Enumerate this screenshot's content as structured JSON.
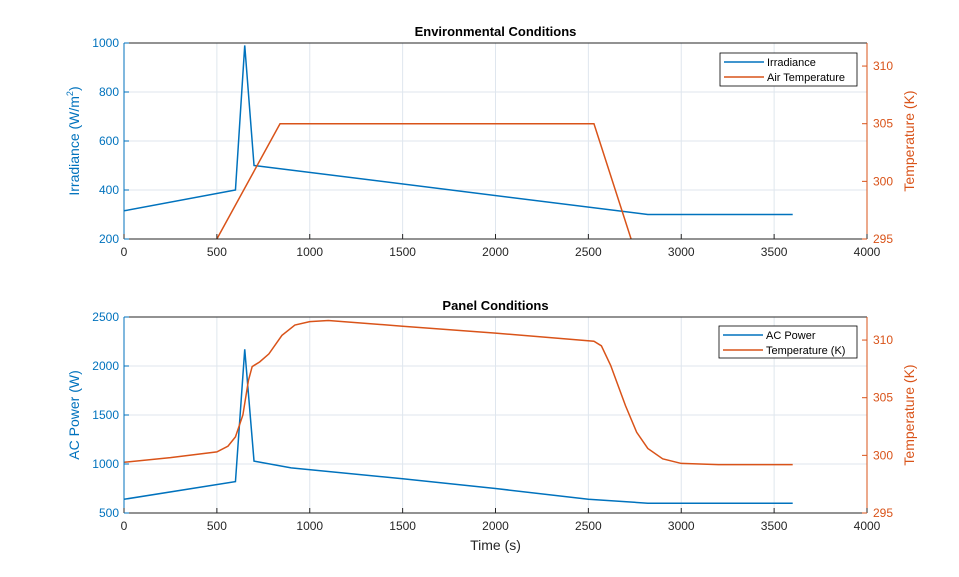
{
  "colors": {
    "blue": "#0072BD",
    "orange": "#D95319",
    "grid": "#dfe6ee",
    "axis": "#262626"
  },
  "chart_data": [
    {
      "type": "line",
      "title": "Environmental Conditions",
      "xlabel": "",
      "ylabel_left": "Irradiance (W/m",
      "ylabel_left_sup": "2",
      "ylabel_left_end": ")",
      "ylabel_right": "Temperature (K)",
      "xlim": [
        0,
        4000
      ],
      "ylim_left": [
        200,
        1000
      ],
      "ylim_right": [
        295,
        312
      ],
      "xticks": [
        "0",
        "500",
        "1000",
        "1500",
        "2000",
        "2500",
        "3000",
        "3500",
        "4000"
      ],
      "yticks_left": [
        "200",
        "400",
        "600",
        "800",
        "1000"
      ],
      "yticks_right": [
        "295",
        "300",
        "305",
        "310"
      ],
      "grid": true,
      "legend": "top-right",
      "series": [
        {
          "name": "Irradiance",
          "axis": "left",
          "color": "#0072BD",
          "x": [
            0,
            600,
            650,
            700,
            2820,
            3600
          ],
          "y": [
            315,
            400,
            990,
            500,
            300,
            300
          ]
        },
        {
          "name": "Air Temperature",
          "axis": "right",
          "color": "#D95319",
          "x": [
            500,
            840,
            2530,
            2730
          ],
          "y": [
            295,
            305,
            305,
            295
          ]
        }
      ]
    },
    {
      "type": "line",
      "title": "Panel Conditions",
      "xlabel": "Time (s)",
      "ylabel_left": "AC Power (W)",
      "ylabel_right": "Temperature (K)",
      "xlim": [
        0,
        4000
      ],
      "ylim_left": [
        500,
        2500
      ],
      "ylim_right": [
        295,
        312
      ],
      "xticks": [
        "0",
        "500",
        "1000",
        "1500",
        "2000",
        "2500",
        "3000",
        "3500",
        "4000"
      ],
      "yticks_left": [
        "500",
        "1000",
        "1500",
        "2000",
        "2500"
      ],
      "yticks_right": [
        "295",
        "300",
        "305",
        "310"
      ],
      "grid": true,
      "legend": "top-right",
      "series": [
        {
          "name": "AC Power",
          "axis": "left",
          "color": "#0072BD",
          "x": [
            0,
            600,
            650,
            700,
            900,
            1500,
            2000,
            2500,
            2820,
            3600
          ],
          "y": [
            640,
            820,
            2170,
            1030,
            960,
            850,
            750,
            640,
            600,
            600
          ]
        },
        {
          "name": "Temperature (K)",
          "axis": "right",
          "color": "#D95319",
          "x": [
            0,
            250,
            500,
            560,
            600,
            640,
            670,
            690,
            730,
            780,
            850,
            920,
            1000,
            1100,
            1500,
            2000,
            2530,
            2570,
            2620,
            2700,
            2760,
            2820,
            2900,
            3000,
            3200,
            3600
          ],
          "y": [
            299.4,
            299.8,
            300.3,
            300.8,
            301.6,
            303.5,
            306.5,
            307.7,
            308.1,
            308.8,
            310.4,
            311.3,
            311.6,
            311.7,
            311.2,
            310.6,
            309.9,
            309.5,
            307.8,
            304.3,
            302.0,
            300.6,
            299.7,
            299.3,
            299.2,
            299.2
          ]
        }
      ]
    }
  ]
}
